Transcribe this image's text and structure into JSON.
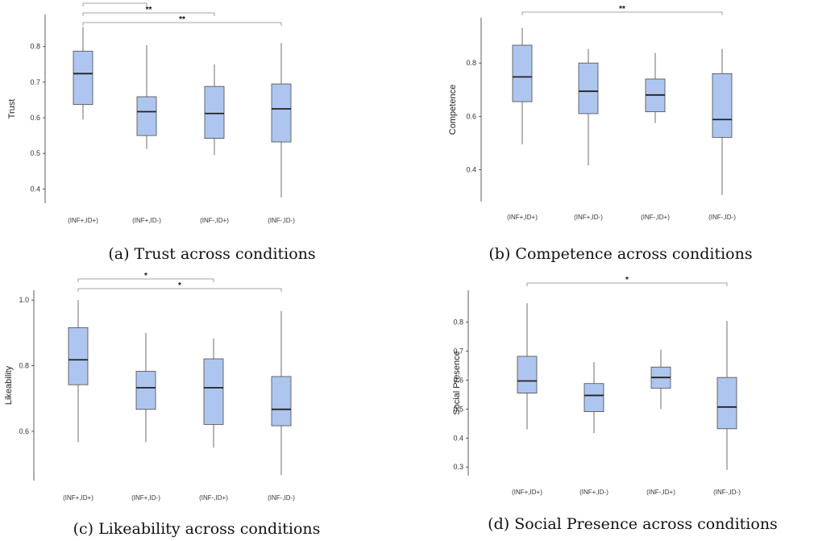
{
  "style": {
    "box_fill": "#aec6ef",
    "box_stroke": "#4a4a4a",
    "median_color": "#222222",
    "axis_color": "#333333",
    "bracket_color": "#888888"
  },
  "chart_data": [
    {
      "type": "boxplot",
      "caption": "(a) Trust across conditions",
      "ylabel": "Trust",
      "categories": [
        "(INF+,ID+)",
        "(INF+,ID-)",
        "(INF-,ID+)",
        "(INF-,ID-)"
      ],
      "ylim": [
        0.36,
        0.89
      ],
      "yticks": [
        0.4,
        0.5,
        0.6,
        0.7,
        0.8
      ],
      "boxes": [
        {
          "min": 0.595,
          "q1": 0.637,
          "median": 0.724,
          "q3": 0.787,
          "max": 0.855
        },
        {
          "min": 0.512,
          "q1": 0.55,
          "median": 0.617,
          "q3": 0.659,
          "max": 0.804
        },
        {
          "min": 0.495,
          "q1": 0.542,
          "median": 0.612,
          "q3": 0.688,
          "max": 0.75
        },
        {
          "min": 0.376,
          "q1": 0.532,
          "median": 0.625,
          "q3": 0.695,
          "max": 0.81
        }
      ],
      "brackets": [
        {
          "from": 0,
          "to": 1,
          "label": "*"
        },
        {
          "from": 0,
          "to": 2,
          "label": "**"
        },
        {
          "from": 0,
          "to": 3,
          "label": "**"
        }
      ]
    },
    {
      "type": "boxplot",
      "caption": "(b) Competence across conditions",
      "ylabel": "Competence",
      "categories": [
        "(INF+,ID+)",
        "(INF+,ID-)",
        "(INF-,ID+)",
        "(INF-,ID-)"
      ],
      "ylim": [
        0.28,
        0.97
      ],
      "yticks": [
        0.4,
        0.6,
        0.8
      ],
      "boxes": [
        {
          "min": 0.495,
          "q1": 0.655,
          "median": 0.748,
          "q3": 0.867,
          "max": 0.932
        },
        {
          "min": 0.415,
          "q1": 0.61,
          "median": 0.694,
          "q3": 0.8,
          "max": 0.853
        },
        {
          "min": 0.575,
          "q1": 0.617,
          "median": 0.68,
          "q3": 0.74,
          "max": 0.838
        },
        {
          "min": 0.305,
          "q1": 0.521,
          "median": 0.588,
          "q3": 0.76,
          "max": 0.853
        }
      ],
      "brackets": [
        {
          "from": 0,
          "to": 3,
          "label": "**"
        }
      ]
    },
    {
      "type": "boxplot",
      "caption": "(c) Likeability across conditions",
      "ylabel": "Likeability",
      "categories": [
        "(INF+,ID+)",
        "(INF+,ID-)",
        "(INF-,ID+)",
        "(INF-,ID-)"
      ],
      "ylim": [
        0.45,
        1.03
      ],
      "yticks": [
        0.6,
        0.8,
        1.0
      ],
      "boxes": [
        {
          "min": 0.567,
          "q1": 0.742,
          "median": 0.818,
          "q3": 0.916,
          "max": 1.0
        },
        {
          "min": 0.567,
          "q1": 0.667,
          "median": 0.733,
          "q3": 0.783,
          "max": 0.9
        },
        {
          "min": 0.55,
          "q1": 0.621,
          "median": 0.733,
          "q3": 0.821,
          "max": 0.883
        },
        {
          "min": 0.467,
          "q1": 0.617,
          "median": 0.667,
          "q3": 0.767,
          "max": 0.967
        }
      ],
      "brackets": [
        {
          "from": 0,
          "to": 2,
          "label": "*"
        },
        {
          "from": 0,
          "to": 3,
          "label": "*"
        }
      ]
    },
    {
      "type": "boxplot",
      "caption": "(d) Social Presence across conditions",
      "ylabel": "Social Presence",
      "categories": [
        "(INF+,ID+)",
        "(INF+,ID-)",
        "(INF-,ID+)",
        "(INF-,ID-)"
      ],
      "ylim": [
        0.27,
        0.91
      ],
      "yticks": [
        0.3,
        0.4,
        0.5,
        0.6,
        0.7,
        0.8
      ],
      "boxes": [
        {
          "min": 0.43,
          "q1": 0.555,
          "median": 0.597,
          "q3": 0.682,
          "max": 0.865
        },
        {
          "min": 0.417,
          "q1": 0.491,
          "median": 0.547,
          "q3": 0.588,
          "max": 0.662
        },
        {
          "min": 0.5,
          "q1": 0.572,
          "median": 0.609,
          "q3": 0.645,
          "max": 0.705
        },
        {
          "min": 0.29,
          "q1": 0.432,
          "median": 0.507,
          "q3": 0.609,
          "max": 0.804
        }
      ],
      "brackets": [
        {
          "from": 0,
          "to": 3,
          "label": "*"
        }
      ]
    }
  ]
}
